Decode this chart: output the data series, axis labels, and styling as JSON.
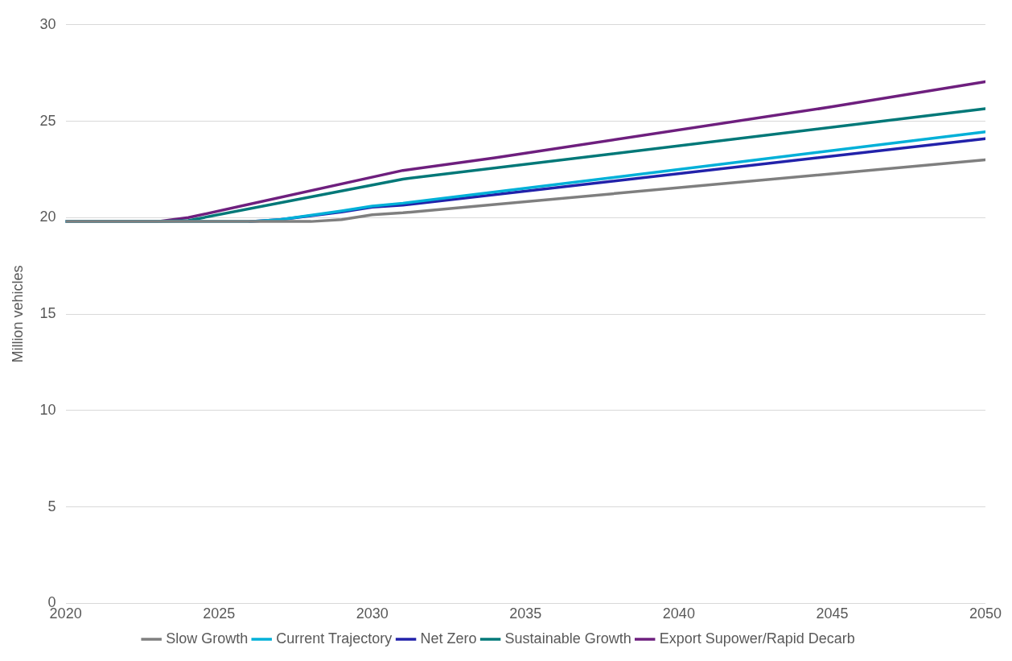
{
  "chart_data": {
    "type": "line",
    "ylabel": "Million vehicles",
    "xlim": [
      2020,
      2050
    ],
    "xticks": [
      2020,
      2025,
      2030,
      2035,
      2040,
      2045,
      2050
    ],
    "ylim": [
      0,
      30
    ],
    "yticks": [
      0,
      5,
      10,
      15,
      20,
      25,
      30
    ],
    "grid": "y",
    "legend": "bottom",
    "marker": "none",
    "line_style": "solid",
    "series": [
      {
        "name": "Slow Growth",
        "color": "#7f7f7f",
        "x": [
          2020,
          2023,
          2028,
          2029,
          2030,
          2031,
          2050
        ],
        "values": [
          19.8,
          19.8,
          19.8,
          19.9,
          20.15,
          20.25,
          23.0
        ]
      },
      {
        "name": "Current Trajectory",
        "color": "#00b0d8",
        "x": [
          2020,
          2023,
          2026,
          2027,
          2029,
          2030,
          2031,
          2050
        ],
        "values": [
          19.8,
          19.8,
          19.8,
          19.9,
          20.35,
          20.6,
          20.75,
          24.45
        ]
      },
      {
        "name": "Net Zero",
        "color": "#2222aa",
        "x": [
          2026,
          2027,
          2029,
          2030,
          2031,
          2050
        ],
        "values": [
          19.8,
          19.9,
          20.3,
          20.55,
          20.65,
          24.1
        ]
      },
      {
        "name": "Sustainable Growth",
        "color": "#007878",
        "x": [
          2020,
          2023,
          2024,
          2031,
          2050
        ],
        "values": [
          19.8,
          19.8,
          19.85,
          22.0,
          25.65
        ]
      },
      {
        "name": "Export Supower/Rapid Decarb",
        "color": "#6e1f7e",
        "x": [
          2020,
          2023,
          2024,
          2031,
          2034,
          2045,
          2050
        ],
        "values": [
          19.8,
          19.8,
          20.0,
          22.45,
          23.1,
          25.75,
          27.05
        ]
      }
    ]
  }
}
